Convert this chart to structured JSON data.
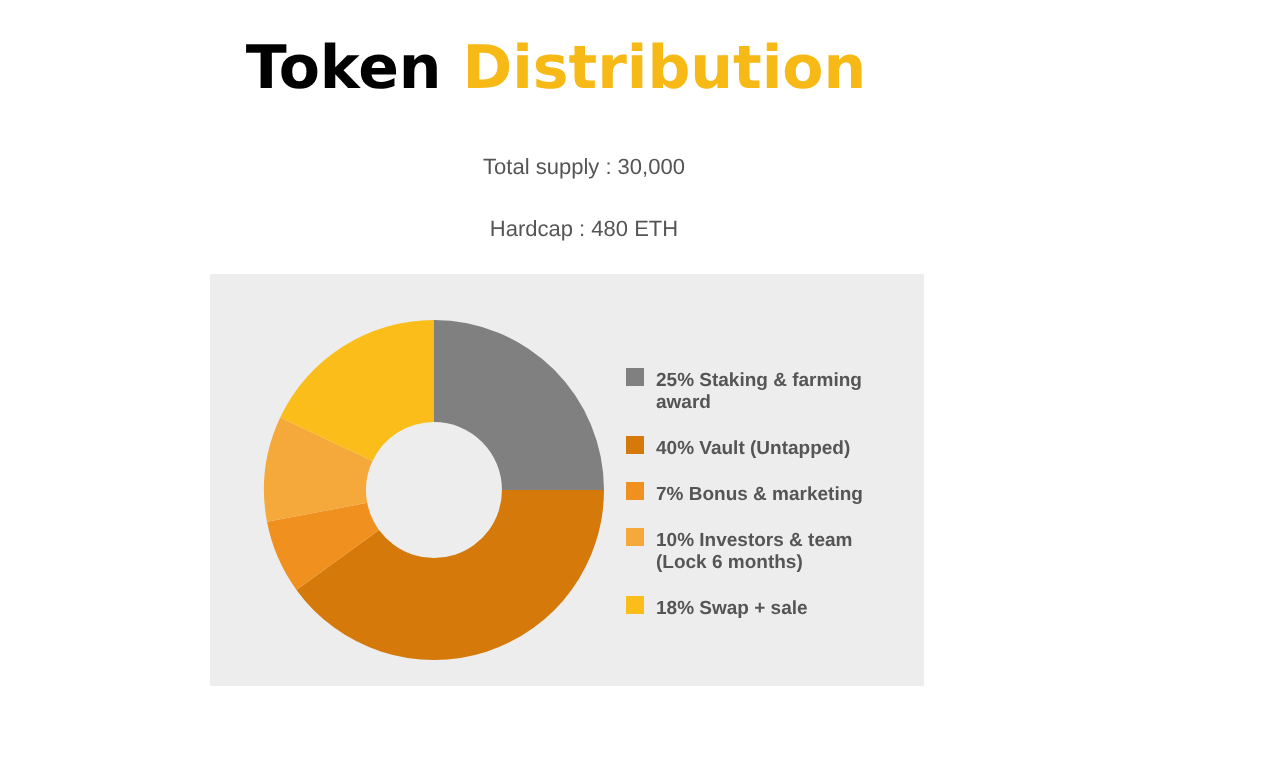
{
  "chart_data": {
    "type": "donut",
    "title": "Token Distribution",
    "subtitle": "Total supply : 30,000",
    "annotations": [
      "Hardcap : 480 ETH"
    ],
    "categories": [
      "25% Staking & farming award",
      "40% Vault (Untapped)",
      "7% Bonus & marketing",
      "10% Investors & team (Lock 6 months)",
      "18% Swap + sale"
    ],
    "values": [
      25,
      40,
      7,
      10,
      18
    ],
    "colors": [
      "#808080",
      "#d4790a",
      "#f0911f",
      "#f5a93a",
      "#fbbd1a"
    ],
    "legend": "right"
  }
}
